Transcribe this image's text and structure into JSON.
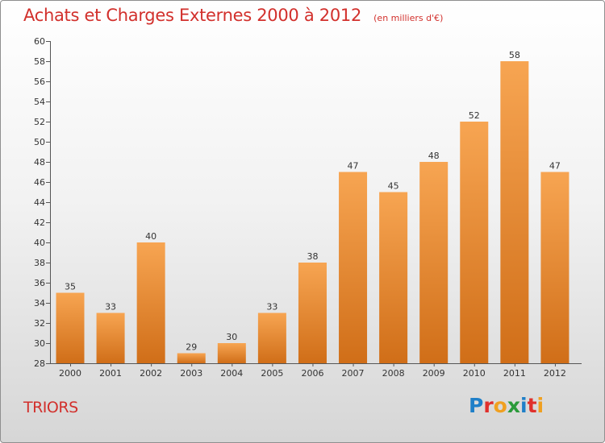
{
  "header": {
    "title": "Achats et Charges Externes 2000 à 2012",
    "subtitle": "(en milliers d'€)"
  },
  "footer": {
    "commune": "TRIORS",
    "logo_text": "Proxiti"
  },
  "colors": {
    "bar_top": "#f7a552",
    "bar_bottom": "#d06e18",
    "title": "#d2302c",
    "logo_letters": [
      "#1f7fc8",
      "#e0302c",
      "#f0a020",
      "#2a9a3a",
      "#1f7fc8",
      "#e0302c",
      "#f0a020"
    ]
  },
  "chart_data": {
    "type": "bar",
    "title": "Achats et Charges Externes 2000 à 2012",
    "categories": [
      "2000",
      "2001",
      "2002",
      "2003",
      "2004",
      "2005",
      "2006",
      "2007",
      "2008",
      "2009",
      "2010",
      "2011",
      "2012"
    ],
    "values": [
      35,
      33,
      40,
      29,
      30,
      33,
      38,
      47,
      45,
      48,
      52,
      58,
      47
    ],
    "ylim": [
      28,
      60
    ],
    "ytick_step": 2,
    "grid": false,
    "legend": "none"
  }
}
